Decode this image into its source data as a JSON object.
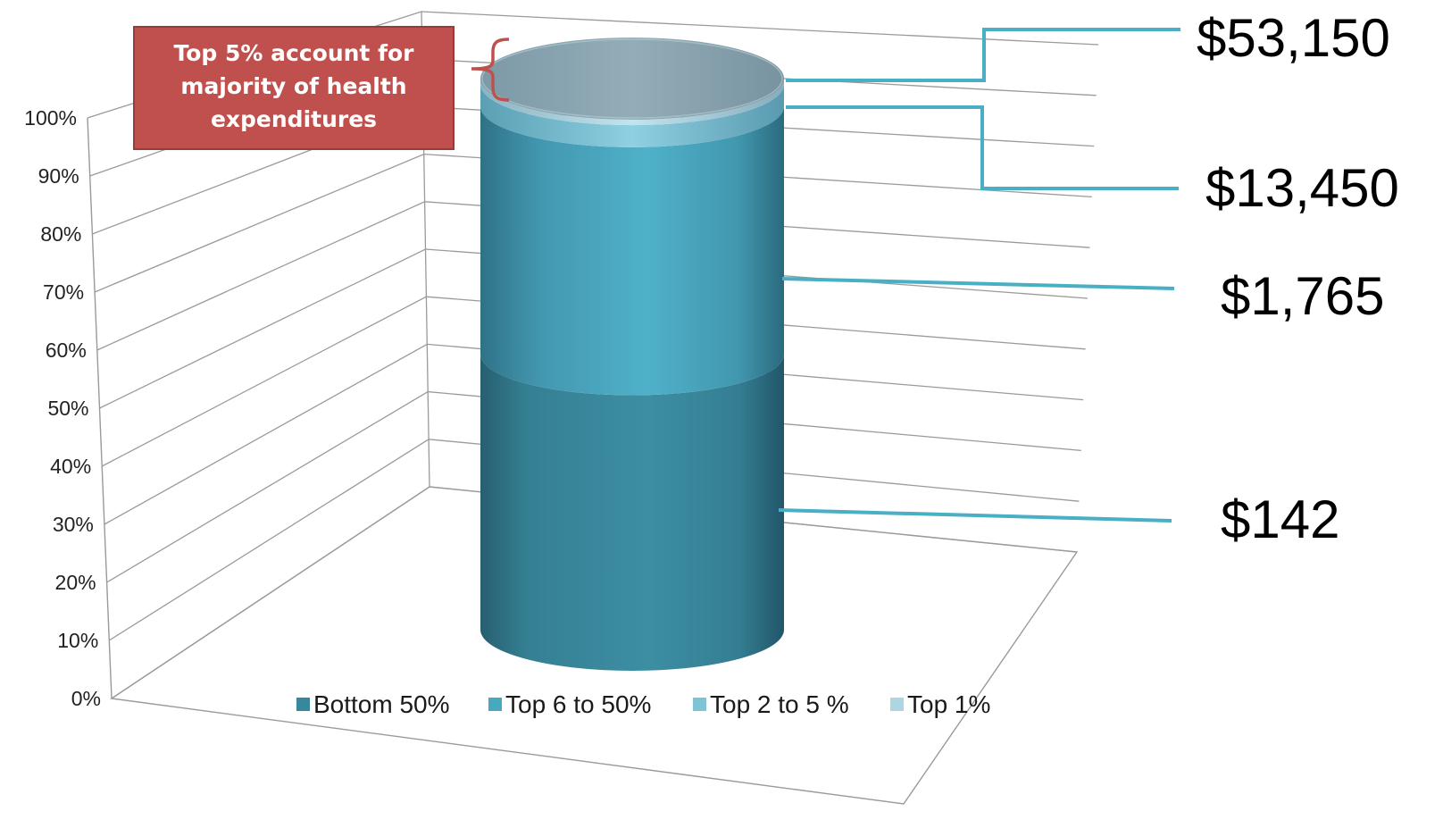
{
  "chart_data": {
    "type": "bar",
    "subtype": "3d-stacked-cylinder-100-percent",
    "title": "",
    "xlabel": "",
    "ylabel": "",
    "ylim": [
      0,
      100
    ],
    "y_ticks": [
      "0%",
      "10%",
      "20%",
      "30%",
      "40%",
      "50%",
      "60%",
      "70%",
      "80%",
      "90%",
      "100%"
    ],
    "grid": true,
    "legend_position": "bottom",
    "series": [
      {
        "name": "Bottom 50%",
        "value": 50,
        "color": "#37889c",
        "cost_label": "$142"
      },
      {
        "name": "Top 6 to 50%",
        "value": 45,
        "color": "#47a8c0",
        "cost_label": "$1,765"
      },
      {
        "name": "Top 2 to 5 %",
        "value": 4,
        "color": "#7fc3d6",
        "cost_label": "$13,450"
      },
      {
        "name": "Top 1%",
        "value": 1,
        "color": "#aed6e2",
        "cost_label": "$53,150"
      }
    ],
    "annotation": {
      "lines": [
        "Top 5% account for",
        "majority of health",
        "expenditures"
      ],
      "box_color": "#c0504d",
      "bracket_color": "#c0504d"
    }
  }
}
